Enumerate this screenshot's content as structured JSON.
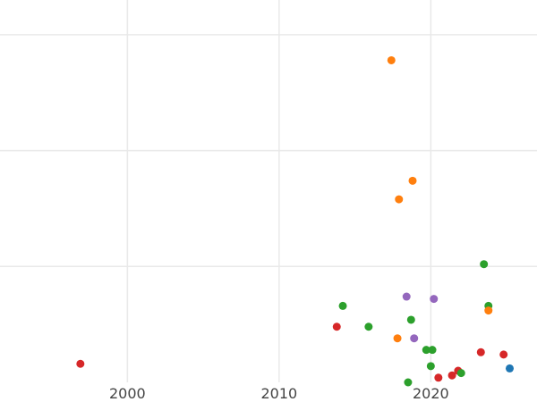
{
  "chart_data": {
    "type": "scatter",
    "title": "",
    "xlabel": "",
    "ylabel": "",
    "xlim": [
      1991.6,
      2027.0
    ],
    "ylim": [
      0.0,
      16.5
    ],
    "grid": true,
    "x_ticks": [
      2000,
      2010,
      2020
    ],
    "x_tick_labels": [
      "2000",
      "2010",
      "2020"
    ],
    "y_gridlines": [
      5,
      10,
      15
    ],
    "colors": {
      "blue": "#1f77b4",
      "orange": "#ff7f0e",
      "green": "#2ca02c",
      "red": "#d62728",
      "purple": "#9467bd"
    },
    "points": [
      {
        "x": 1996.9,
        "y": 0.8,
        "color": "red"
      },
      {
        "x": 2013.8,
        "y": 2.4,
        "color": "red"
      },
      {
        "x": 2014.2,
        "y": 3.3,
        "color": "green"
      },
      {
        "x": 2015.9,
        "y": 2.4,
        "color": "green"
      },
      {
        "x": 2017.4,
        "y": 13.9,
        "color": "orange"
      },
      {
        "x": 2017.8,
        "y": 1.9,
        "color": "orange"
      },
      {
        "x": 2017.9,
        "y": 7.9,
        "color": "orange"
      },
      {
        "x": 2018.4,
        "y": 3.7,
        "color": "purple"
      },
      {
        "x": 2018.5,
        "y": 0.0,
        "color": "green"
      },
      {
        "x": 2018.7,
        "y": 2.7,
        "color": "green"
      },
      {
        "x": 2018.8,
        "y": 8.7,
        "color": "orange"
      },
      {
        "x": 2018.9,
        "y": 1.9,
        "color": "purple"
      },
      {
        "x": 2019.7,
        "y": 1.4,
        "color": "green"
      },
      {
        "x": 2020.0,
        "y": 0.7,
        "color": "green"
      },
      {
        "x": 2020.1,
        "y": 1.4,
        "color": "green"
      },
      {
        "x": 2020.2,
        "y": 3.6,
        "color": "purple"
      },
      {
        "x": 2020.5,
        "y": 0.2,
        "color": "red"
      },
      {
        "x": 2021.4,
        "y": 0.3,
        "color": "red"
      },
      {
        "x": 2021.8,
        "y": 0.5,
        "color": "red"
      },
      {
        "x": 2022.0,
        "y": 0.4,
        "color": "green"
      },
      {
        "x": 2023.3,
        "y": 1.3,
        "color": "red"
      },
      {
        "x": 2023.5,
        "y": 5.1,
        "color": "green"
      },
      {
        "x": 2023.8,
        "y": 3.3,
        "color": "green"
      },
      {
        "x": 2023.8,
        "y": 3.1,
        "color": "orange"
      },
      {
        "x": 2024.8,
        "y": 1.2,
        "color": "red"
      },
      {
        "x": 2025.2,
        "y": 0.6,
        "color": "blue"
      }
    ]
  }
}
